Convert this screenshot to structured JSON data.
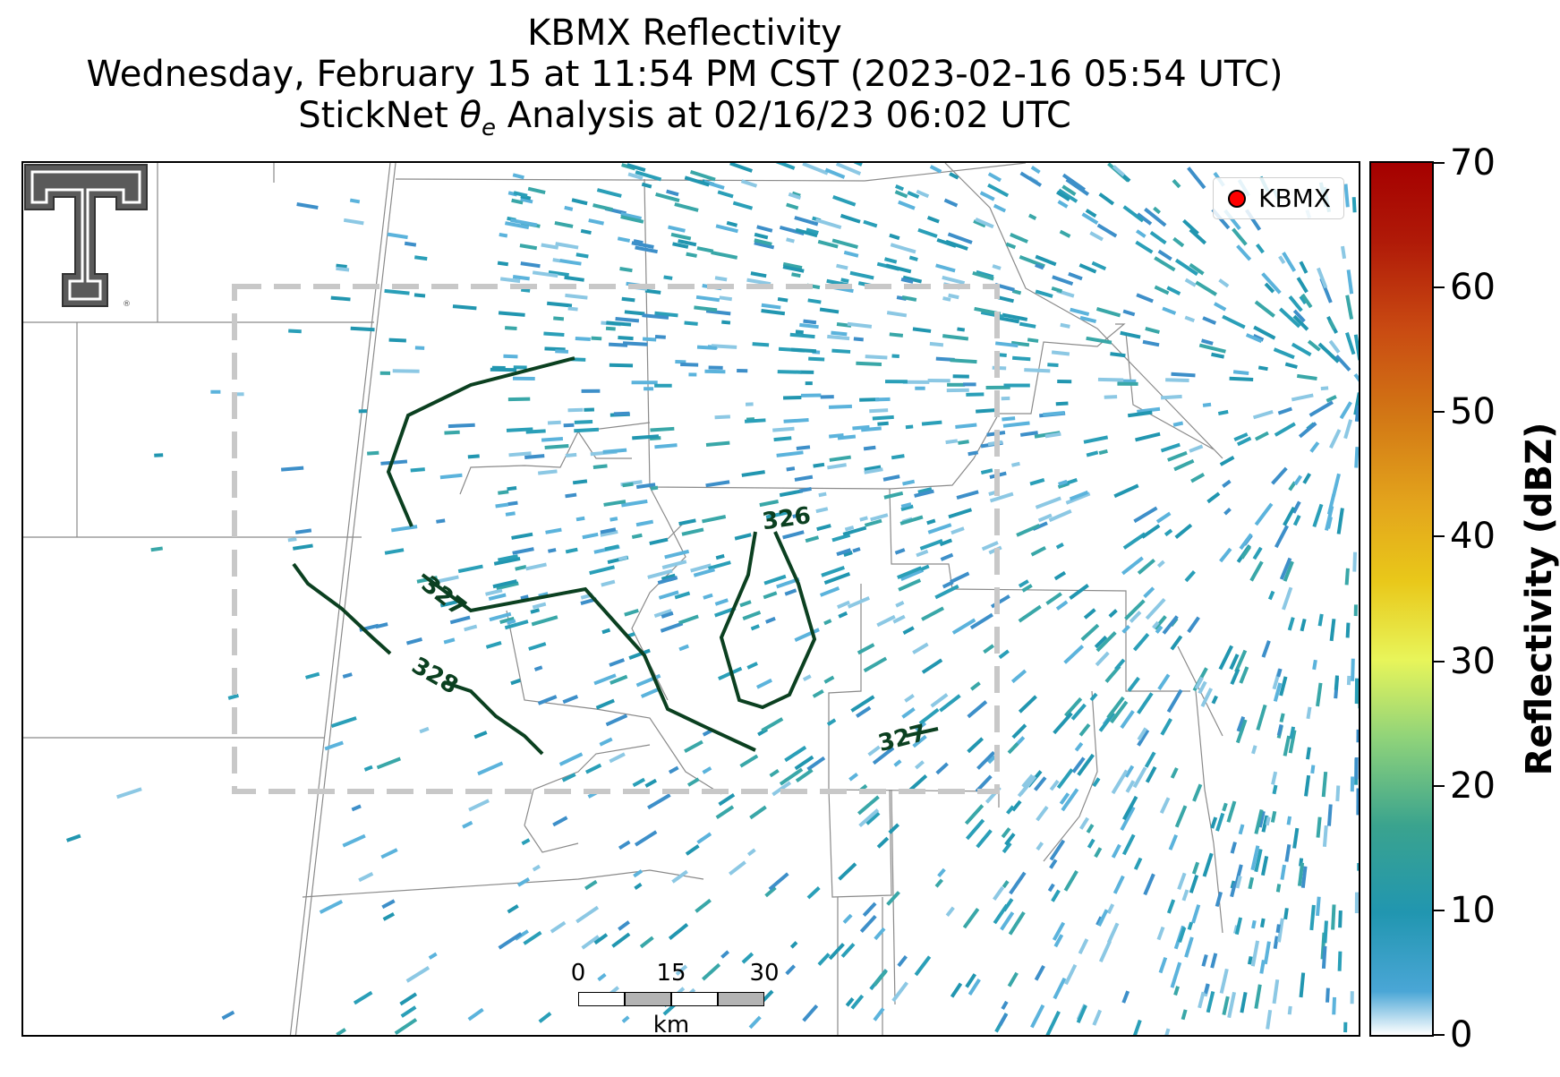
{
  "title": {
    "line1": "KBMX Reflectivity",
    "line2": "Wednesday, February 15 at 11:54 PM CST (2023-02-16 05:54 UTC)",
    "line3_prefix": "StickNet ",
    "line3_symbol": "θ",
    "line3_sub": "e",
    "line3_suffix": " Analysis at 02/16/23 06:02 UTC"
  },
  "legend": {
    "label": "KBMX",
    "marker_color": "#ff0000"
  },
  "logo": {
    "icon": "texas-tech-double-t-logo"
  },
  "contours": [
    {
      "label": "326",
      "color": "#0b4020"
    },
    {
      "label": "327",
      "color": "#0b4020"
    },
    {
      "label": "328",
      "color": "#0b4020"
    },
    {
      "label": "327",
      "color": "#0b4020"
    }
  ],
  "analysis_domain": {
    "style": "dashed",
    "color": "#c8c8c8"
  },
  "scalebar": {
    "ticks": [
      "0",
      "15",
      "30"
    ],
    "unit": "km"
  },
  "colorbar": {
    "label": "Reflectivity (dBZ)",
    "ticks": [
      "0",
      "10",
      "20",
      "30",
      "40",
      "50",
      "60",
      "70"
    ],
    "min": 0,
    "max": 70
  },
  "colors": {
    "reflectivity_low": "#2196b0",
    "reflectivity_light": "#8cc8e4",
    "county_lines": "#8a8a8a"
  }
}
